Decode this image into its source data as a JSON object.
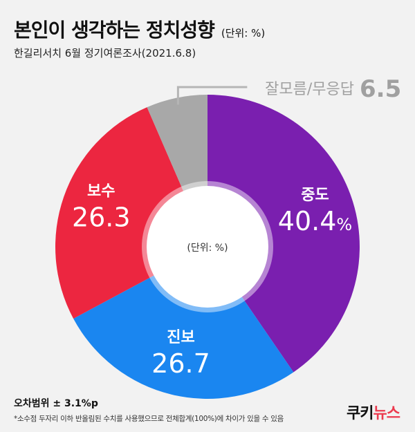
{
  "header": {
    "title": "본인이 생각하는 정치성향",
    "unit": "(단위: %)",
    "subtitle": "한길리서치 6월 정기여론조사(2021.6.8)"
  },
  "chart_data": {
    "type": "pie",
    "style": "donut",
    "center_label": "(단위: %)",
    "slices": [
      {
        "label": "중도",
        "value": 40.4,
        "display": "40.4",
        "suffix": "%",
        "color": "#7a1faf"
      },
      {
        "label": "진보",
        "value": 26.7,
        "display": "26.7",
        "suffix": "",
        "color": "#1a86f0"
      },
      {
        "label": "보수",
        "value": 26.3,
        "display": "26.3",
        "suffix": "",
        "color": "#ec2640"
      },
      {
        "label": "잘모름/무응답",
        "value": 6.5,
        "display": "6.5",
        "suffix": "",
        "color": "#a8a8a8"
      }
    ]
  },
  "footer": {
    "margin_of_error": "오차범위 ± 3.1%p",
    "note": "*소수점 두자리 이하 반올림된 수치를 사용했으므로 전체합계(100%)에 차이가 있을 수 있음",
    "logo_main": "쿠키",
    "logo_accent": "뉴스"
  }
}
